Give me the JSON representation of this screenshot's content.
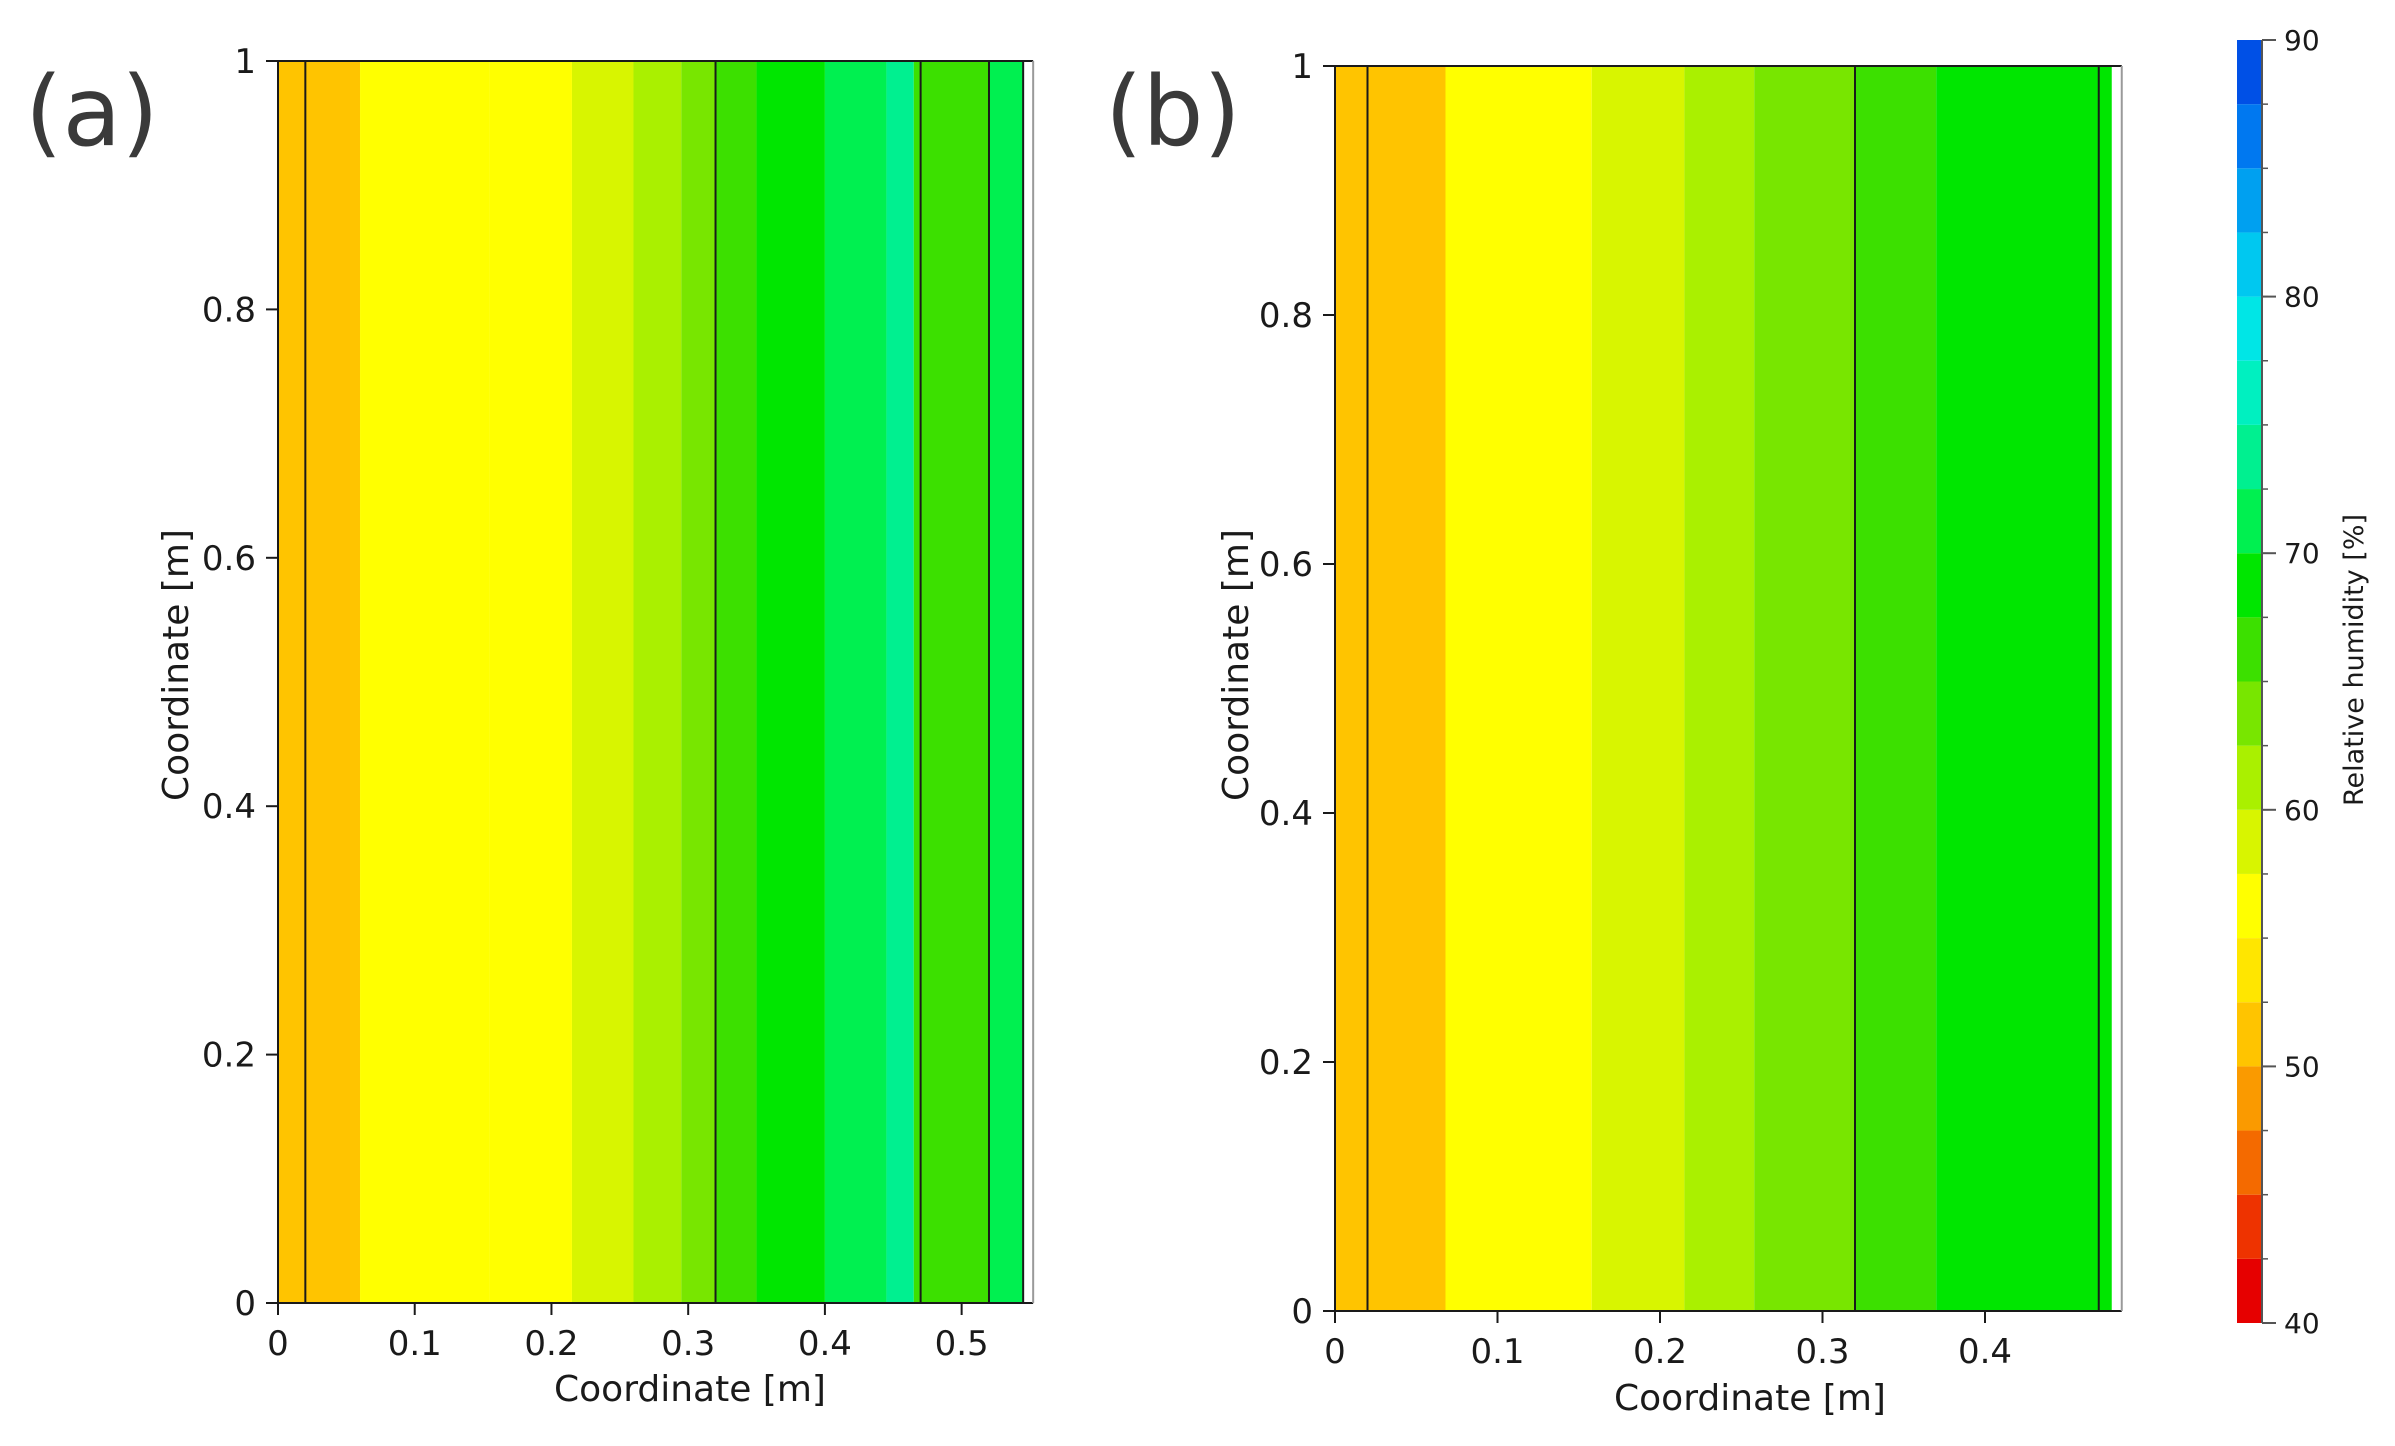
{
  "chart_data": [
    {
      "type": "heatmap",
      "panel_label": "(a)",
      "xlabel": "Coordinate [m]",
      "ylabel": "Coordinate [m]",
      "xlim": [
        0,
        0.55
      ],
      "ylim": [
        0,
        1
      ],
      "xticks": [
        {
          "value": 0,
          "label": "0"
        },
        {
          "value": 0.1,
          "label": "0.1"
        },
        {
          "value": 0.2,
          "label": "0.2"
        },
        {
          "value": 0.3,
          "label": "0.3"
        },
        {
          "value": 0.4,
          "label": "0.4"
        },
        {
          "value": 0.5,
          "label": "0.5"
        }
      ],
      "yticks": [
        {
          "value": 0,
          "label": "0"
        },
        {
          "value": 0.2,
          "label": "0.2"
        },
        {
          "value": 0.4,
          "label": "0.4"
        },
        {
          "value": 0.6,
          "label": "0.6"
        },
        {
          "value": 0.8,
          "label": "0.8"
        },
        {
          "value": 1,
          "label": "1"
        }
      ],
      "bands": [
        {
          "x0": 0.0,
          "x1": 0.06,
          "rh": 51
        },
        {
          "x0": 0.06,
          "x1": 0.155,
          "rh": 55
        },
        {
          "x0": 0.155,
          "x1": 0.215,
          "rh": 57
        },
        {
          "x0": 0.215,
          "x1": 0.26,
          "rh": 59
        },
        {
          "x0": 0.26,
          "x1": 0.295,
          "rh": 61
        },
        {
          "x0": 0.295,
          "x1": 0.32,
          "rh": 63
        },
        {
          "x0": 0.32,
          "x1": 0.35,
          "rh": 67
        },
        {
          "x0": 0.35,
          "x1": 0.4,
          "rh": 69
        },
        {
          "x0": 0.4,
          "x1": 0.445,
          "rh": 71
        },
        {
          "x0": 0.445,
          "x1": 0.465,
          "rh": 74
        },
        {
          "x0": 0.465,
          "x1": 0.47,
          "rh": 67
        },
        {
          "x0": 0.47,
          "x1": 0.52,
          "rh": 67
        },
        {
          "x0": 0.52,
          "x1": 0.545,
          "rh": 71
        }
      ],
      "layer_boundaries": [
        0.02,
        0.32,
        0.47,
        0.52,
        0.545
      ]
    },
    {
      "type": "heatmap",
      "panel_label": "(b)",
      "xlabel": "Coordinate [m]",
      "ylabel": "Coordinate [m]",
      "xlim": [
        0,
        0.48
      ],
      "ylim": [
        0,
        1
      ],
      "xticks": [
        {
          "value": 0,
          "label": "0"
        },
        {
          "value": 0.1,
          "label": "0.1"
        },
        {
          "value": 0.2,
          "label": "0.2"
        },
        {
          "value": 0.3,
          "label": "0.3"
        },
        {
          "value": 0.4,
          "label": "0.4"
        }
      ],
      "yticks": [
        {
          "value": 0,
          "label": "0"
        },
        {
          "value": 0.2,
          "label": "0.2"
        },
        {
          "value": 0.4,
          "label": "0.4"
        },
        {
          "value": 0.6,
          "label": "0.6"
        },
        {
          "value": 0.8,
          "label": "0.8"
        },
        {
          "value": 1,
          "label": "1"
        }
      ],
      "bands": [
        {
          "x0": 0.0,
          "x1": 0.068,
          "rh": 51
        },
        {
          "x0": 0.068,
          "x1": 0.158,
          "rh": 55
        },
        {
          "x0": 0.158,
          "x1": 0.215,
          "rh": 59
        },
        {
          "x0": 0.215,
          "x1": 0.258,
          "rh": 61
        },
        {
          "x0": 0.258,
          "x1": 0.32,
          "rh": 63
        },
        {
          "x0": 0.32,
          "x1": 0.37,
          "rh": 67
        },
        {
          "x0": 0.37,
          "x1": 0.478,
          "rh": 69
        }
      ],
      "layer_boundaries": [
        0.02,
        0.32,
        0.47
      ]
    }
  ],
  "colorbar": {
    "label": "Relative humidity [%]",
    "min": 40,
    "max": 90,
    "step": 2.5,
    "ticks": [
      {
        "value": 40,
        "label": "40"
      },
      {
        "value": 50,
        "label": "50"
      },
      {
        "value": 60,
        "label": "60"
      },
      {
        "value": 70,
        "label": "70"
      },
      {
        "value": 80,
        "label": "80"
      },
      {
        "value": 90,
        "label": "90"
      }
    ],
    "colors": [
      "#e60000",
      "#ee3300",
      "#f46a00",
      "#fa9a00",
      "#ffc400",
      "#ffe600",
      "#ffff00",
      "#d8f500",
      "#aaf000",
      "#78e600",
      "#3ce000",
      "#00e600",
      "#00f050",
      "#00f090",
      "#00f0c0",
      "#00e6e6",
      "#00c8f0",
      "#00a0f0",
      "#0078f0",
      "#0050e6"
    ]
  }
}
